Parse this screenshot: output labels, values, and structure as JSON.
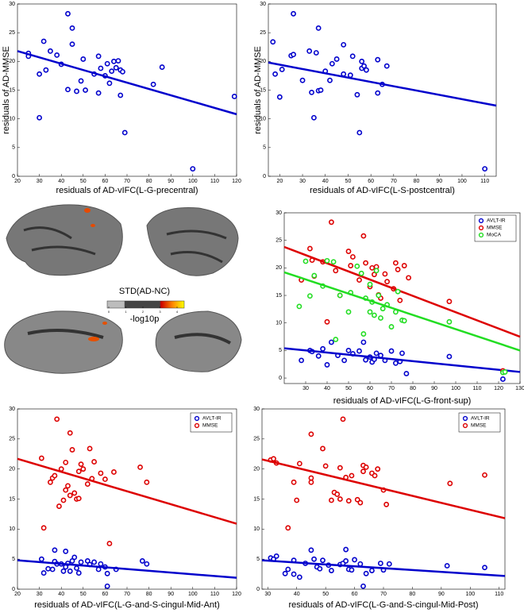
{
  "chart_data": [
    {
      "type": "scatter",
      "xlabel": "residuals of AD-vIFC(L-G-precentral)",
      "ylabel": "residuals of AD-MMSE",
      "xlim": [
        20,
        120
      ],
      "xticks": [
        20,
        30,
        40,
        50,
        60,
        70,
        80,
        90,
        100,
        110,
        120
      ],
      "ylim": [
        0,
        30
      ],
      "yticks": [
        0,
        5,
        10,
        15,
        20,
        25,
        30
      ],
      "series": [
        {
          "color": "#0000cc",
          "x": [
            25,
            25,
            30,
            30,
            32,
            33,
            35,
            38,
            40,
            43,
            43,
            45,
            45,
            47,
            49,
            50,
            51,
            55,
            57,
            57,
            58,
            60,
            61,
            62,
            63,
            64,
            65,
            66,
            67,
            67,
            68,
            69,
            82,
            86,
            100,
            119
          ],
          "values": [
            21.4,
            20.9,
            10.2,
            17.8,
            23.5,
            18.5,
            21.8,
            21.1,
            19.5,
            28.3,
            15.1,
            23,
            25.8,
            14.8,
            16.6,
            20.4,
            15,
            17.8,
            20.9,
            14.5,
            18.8,
            17.5,
            19.6,
            16.2,
            18.3,
            20,
            18.9,
            20.1,
            14.1,
            18.5,
            18.2,
            7.6,
            16,
            19,
            1.3,
            13.9
          ],
          "fit_x": [
            20,
            120
          ],
          "fit_y": [
            21.8,
            10.8
          ]
        }
      ]
    },
    {
      "type": "scatter",
      "xlabel": "residuals of AD-vIFC(L-S-postcentral)",
      "ylabel": "residuals of AD-MMSE",
      "xlim": [
        15,
        115
      ],
      "xticks": [
        20,
        30,
        40,
        50,
        60,
        70,
        80,
        90,
        100,
        110
      ],
      "ylim": [
        0,
        30
      ],
      "yticks": [
        0,
        5,
        10,
        15,
        20,
        25,
        30
      ],
      "series": [
        {
          "color": "#0000cc",
          "x": [
            17,
            18,
            20,
            21,
            25,
            26,
            26,
            30,
            33,
            34,
            35,
            36,
            37,
            37,
            38,
            40,
            42,
            43,
            45,
            48,
            48,
            51,
            52,
            54,
            55,
            56,
            56,
            57,
            58,
            63,
            63,
            65,
            67,
            110
          ],
          "values": [
            23.4,
            17.8,
            13.8,
            18.6,
            21,
            28.3,
            21.2,
            16.7,
            21.8,
            14.6,
            10.2,
            21.5,
            25.8,
            14.9,
            15,
            18.3,
            16.7,
            19.6,
            20.4,
            22.9,
            17.8,
            17.6,
            20.9,
            14.2,
            7.6,
            18.8,
            20,
            19.2,
            18.5,
            20.3,
            14.5,
            16,
            19.2,
            1.3
          ],
          "fit_x": [
            15,
            115
          ],
          "fit_y": [
            19.8,
            12.3
          ]
        }
      ]
    },
    {
      "type": "scatter",
      "xlabel": "residuals of AD-vIFC(L-G-front-sup)",
      "xlim": [
        20,
        130
      ],
      "xticks": [
        30,
        40,
        50,
        60,
        70,
        80,
        90,
        100,
        110,
        120,
        130
      ],
      "ylim": [
        -1,
        30
      ],
      "yticks": [
        0,
        5,
        10,
        15,
        20,
        25,
        30
      ],
      "series": [
        {
          "name": "AVLT-IR",
          "color": "#0000cc",
          "x": [
            28,
            32,
            33,
            36,
            38,
            42,
            40,
            45,
            48,
            50,
            52,
            55,
            57,
            58,
            60,
            61,
            62,
            63,
            65,
            67,
            70,
            72,
            74,
            75,
            77,
            97,
            122,
            122
          ],
          "values": [
            3.2,
            5,
            4.8,
            4,
            5.3,
            6.5,
            2.4,
            4.1,
            3.2,
            5,
            4.4,
            4.9,
            6.5,
            3.3,
            3.8,
            2.9,
            3.4,
            4.5,
            4.1,
            3.2,
            4.9,
            2.7,
            3,
            4.5,
            0.8,
            3.9,
            -0.2,
            1.2
          ],
          "fit_x": [
            20,
            130
          ],
          "fit_y": [
            5.4,
            1.1
          ]
        },
        {
          "name": "MMSE",
          "color": "#dd0000",
          "x": [
            28,
            32,
            33,
            34,
            38,
            40,
            42,
            44,
            46,
            50,
            51,
            52,
            55,
            57,
            58,
            60,
            61,
            62,
            63,
            64,
            65,
            67,
            68,
            71,
            72,
            73,
            74,
            76,
            78,
            97,
            122
          ],
          "values": [
            17.8,
            23.5,
            21.4,
            18.5,
            21.1,
            10.2,
            28.3,
            19.5,
            15,
            23,
            20.4,
            22,
            17.8,
            25.8,
            20.9,
            16.6,
            20,
            18.8,
            20.2,
            15.1,
            14.5,
            18.9,
            17.5,
            16.2,
            20.9,
            19.7,
            14.1,
            20.4,
            18.2,
            13.9,
            1.3
          ],
          "fit_x": [
            20,
            130
          ],
          "fit_y": [
            23.8,
            7.5
          ]
        },
        {
          "name": "MoCA",
          "color": "#22dd22",
          "x": [
            27,
            30,
            32,
            34,
            38,
            40,
            43,
            44,
            46,
            50,
            51,
            54,
            56,
            57,
            58,
            60,
            60,
            61,
            62,
            63,
            64,
            65,
            66,
            68,
            70,
            72,
            73,
            75,
            76,
            97,
            122,
            123
          ],
          "values": [
            13,
            21.2,
            14.9,
            18.6,
            16.7,
            21.3,
            21.1,
            7,
            15,
            12,
            15.5,
            20.3,
            19,
            8,
            14.5,
            17,
            12,
            13.8,
            11.4,
            19.5,
            15,
            10.9,
            12.6,
            13.3,
            9.3,
            12,
            15.7,
            10.5,
            10.4,
            10.2,
            1,
            1.1
          ],
          "fit_x": [
            20,
            130
          ],
          "fit_y": [
            19.2,
            5
          ]
        }
      ]
    },
    {
      "type": "scatter",
      "xlabel": "residuals of AD-vIFC(L-G-and-S-cingul-Mid-Ant)",
      "xlim": [
        20,
        120
      ],
      "xticks": [
        20,
        30,
        40,
        50,
        60,
        70,
        80,
        90,
        100,
        110,
        120
      ],
      "ylim": [
        0,
        30
      ],
      "yticks": [
        0,
        5,
        10,
        15,
        20,
        25,
        30
      ],
      "series": [
        {
          "name": "AVLT-IR",
          "color": "#0000cc",
          "x": [
            31,
            32,
            34,
            36,
            37,
            37,
            38,
            40,
            41,
            42,
            42,
            43,
            44,
            45,
            46,
            47,
            48,
            49,
            52,
            53,
            55,
            57,
            58,
            60,
            61,
            61,
            65,
            77,
            79
          ],
          "values": [
            5,
            2.7,
            3.4,
            3.3,
            4.6,
            6.5,
            4.2,
            4.2,
            3,
            6.3,
            3.7,
            4.3,
            3,
            4.7,
            5.3,
            3.5,
            2.7,
            4.5,
            4.7,
            4.1,
            4.5,
            3.3,
            4.2,
            3.7,
            0.5,
            2.6,
            3.3,
            4.7,
            4.2
          ],
          "fit_x": [
            20,
            120
          ],
          "fit_y": [
            4.8,
            1.9
          ]
        },
        {
          "name": "MMSE",
          "color": "#dd0000",
          "x": [
            31,
            32,
            35,
            36,
            37,
            38,
            39,
            40,
            41,
            42,
            42,
            43,
            44,
            44,
            45,
            46,
            47,
            48,
            48,
            49,
            50,
            52,
            53,
            54,
            55,
            58,
            60,
            62,
            64,
            76,
            79
          ],
          "values": [
            21.8,
            10.2,
            17.8,
            18.5,
            18.9,
            28.3,
            13.8,
            20,
            14.8,
            21.1,
            16.5,
            17.2,
            26,
            15.6,
            23.2,
            16,
            15,
            19.6,
            15.1,
            20.8,
            20,
            17.5,
            23.4,
            18.4,
            21.2,
            19.3,
            18.3,
            7.6,
            19.5,
            20.3,
            17.8
          ],
          "fit_x": [
            20,
            120
          ],
          "fit_y": [
            21.7,
            10.9
          ]
        }
      ]
    },
    {
      "type": "scatter",
      "xlabel": "residuals of AD-vIFC(L-G-and-S-cingul-Mid-Post)",
      "xlim": [
        28,
        112
      ],
      "xticks": [
        30,
        40,
        50,
        60,
        70,
        80,
        90,
        100,
        110
      ],
      "ylim": [
        0,
        30
      ],
      "yticks": [
        0,
        5,
        10,
        15,
        20,
        25,
        30
      ],
      "series": [
        {
          "name": "AVLT-IR",
          "color": "#0000cc",
          "x": [
            31,
            32,
            33,
            36,
            37,
            39,
            39,
            41,
            43,
            45,
            46,
            47,
            48,
            49,
            51,
            52,
            55,
            56,
            57,
            57,
            58,
            59,
            60,
            62,
            63,
            64,
            66,
            69,
            70,
            72,
            92,
            105
          ],
          "values": [
            5.2,
            5,
            5.5,
            2.6,
            3.3,
            4.8,
            2.5,
            2,
            4.3,
            6.5,
            5,
            3.7,
            3.4,
            4.8,
            4,
            3.1,
            4.1,
            4.3,
            4.7,
            6.6,
            3.3,
            3.2,
            4.9,
            4.2,
            0.5,
            2.6,
            3.1,
            4.3,
            3.2,
            4.2,
            3.9,
            3.6
          ],
          "fit_x": [
            28,
            112
          ],
          "fit_y": [
            4.8,
            2.2
          ]
        },
        {
          "name": "MMSE",
          "color": "#dd0000",
          "x": [
            31,
            32,
            33,
            37,
            39,
            40,
            41,
            45,
            45,
            45,
            49,
            50,
            52,
            53,
            54,
            55,
            55,
            56,
            57,
            58,
            59,
            61,
            62,
            63,
            63,
            64,
            66,
            67,
            68,
            70,
            71,
            93,
            105
          ],
          "values": [
            21.5,
            21.7,
            21,
            10.2,
            17.8,
            14.8,
            20.9,
            25.8,
            18.5,
            17.8,
            23.4,
            20.5,
            14.8,
            16.1,
            15.8,
            15,
            20.2,
            28.3,
            18.6,
            14.7,
            18.9,
            14.9,
            14.4,
            19.6,
            20.6,
            20.3,
            19.3,
            18.9,
            20,
            16.5,
            14.1,
            17.6,
            19
          ],
          "fit_x": [
            28,
            112
          ],
          "fit_y": [
            21.6,
            11.8
          ]
        }
      ]
    }
  ],
  "brain_panel": {
    "title": "STD(AD-NC)",
    "colorbar_label": "-log10p",
    "colorbar_ticks": [
      0,
      1,
      2,
      3,
      4
    ]
  }
}
